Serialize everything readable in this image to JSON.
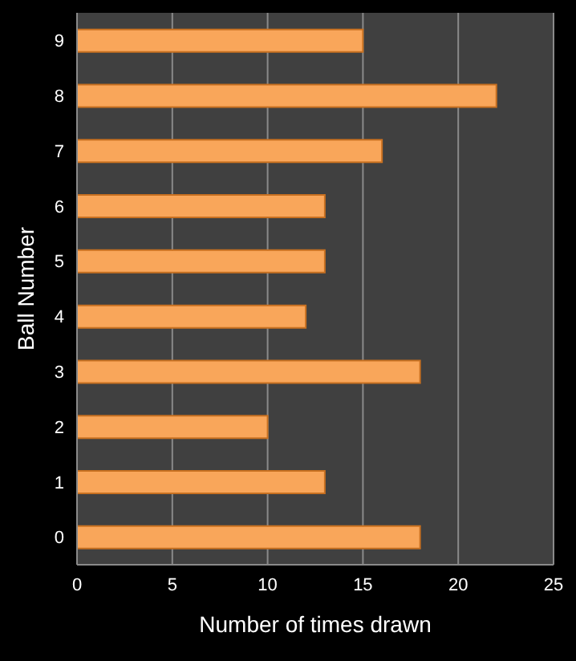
{
  "chart_data": {
    "type": "bar",
    "orientation": "horizontal",
    "categories": [
      "9",
      "8",
      "7",
      "6",
      "5",
      "4",
      "3",
      "2",
      "1",
      "0"
    ],
    "values": [
      15,
      22,
      16,
      13,
      13,
      12,
      18,
      10,
      13,
      18
    ],
    "color": "#f9a65a",
    "xlim": [
      0,
      25
    ],
    "xticks": [
      0,
      5,
      10,
      15,
      20,
      25
    ],
    "xlabel": "Number  of times drawn",
    "ylabel": "Ball Number",
    "grid": "x"
  }
}
